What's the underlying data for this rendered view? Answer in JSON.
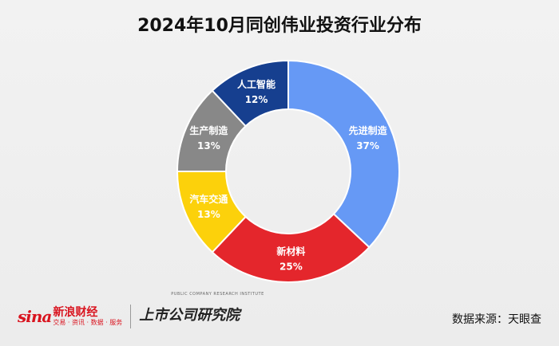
{
  "chart_data": {
    "type": "pie",
    "title": "2024年10月同创伟业投资行业分布",
    "slices": [
      {
        "label": "先进制造",
        "value": 37,
        "value_label": "37%",
        "color": "#6699f5"
      },
      {
        "label": "新材料",
        "value": 25,
        "value_label": "25%",
        "color": "#e4262c"
      },
      {
        "label": "汽车交通",
        "value": 13,
        "value_label": "13%",
        "color": "#fcd10b"
      },
      {
        "label": "生产制造",
        "value": 13,
        "value_label": "13%",
        "color": "#888888"
      },
      {
        "label": "人工智能",
        "value": 12,
        "value_label": "12%",
        "color": "#163f8f"
      }
    ],
    "hole": "donut"
  },
  "footer": {
    "sina_logo_word": "sina",
    "sina_logo_cn": "新浪财经",
    "sina_logo_sub": "交易 · 资讯 · 数据 · 服务",
    "institute_name": "上市公司研究院",
    "institute_en": "PUBLIC COMPANY RESEARCH INSTITUTE",
    "source": "数据来源：天眼查"
  }
}
